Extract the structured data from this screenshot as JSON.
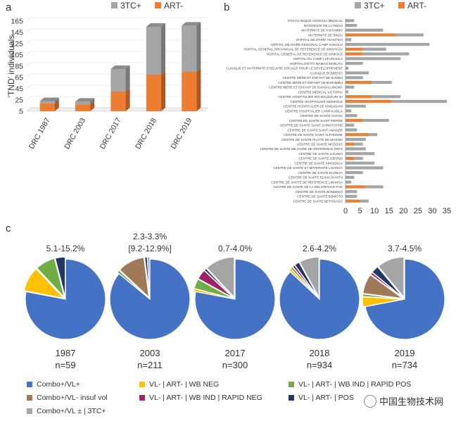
{
  "panels": {
    "a": "a",
    "b": "b",
    "c": "c"
  },
  "chart_data": [
    {
      "id": "panel-a",
      "type": "bar",
      "stacked": true,
      "ylabel": "'TND' individuals",
      "yticks": [
        5,
        25,
        45,
        65,
        85,
        105,
        125,
        145,
        165
      ],
      "ylim": [
        5,
        165
      ],
      "categories": [
        "DRC 1987",
        "DRC 2003",
        "DRC 2017",
        "DRC 2018",
        "DRC 2019"
      ],
      "series": [
        {
          "name": "ART-",
          "color": "#ED7D31",
          "values": [
            14,
            12,
            35,
            65,
            70
          ]
        },
        {
          "name": "3TC+",
          "color": "#A5A5A5",
          "values": [
            4,
            5,
            40,
            85,
            82
          ]
        }
      ],
      "legend": [
        "3TC+",
        "ART-"
      ],
      "legend_position": "top"
    },
    {
      "id": "panel-b",
      "type": "bar",
      "orientation": "horizontal",
      "stacked": true,
      "xlim": [
        0,
        35
      ],
      "xticks": [
        0,
        5,
        10,
        15,
        20,
        25,
        30,
        35
      ],
      "legend": [
        "3TC+",
        "ART-"
      ],
      "legend_position": "top",
      "categories": [
        "POLYCLINIQUE ASSOSSA MEDICAL",
        "MATERNITE DE LUYINDU",
        "MATERNITE DE KINTAMBO",
        "MATERNITE DE BINZA",
        "HOPITAL MILITAIRE TSHATSHI",
        "HOPITAL MILITAIRE REGIONAL CAMP KOKOLO",
        "HOPITAL GENERAL PROVINCIAL DE REFERENCE DE KINSHASA",
        "HOPITAL GENERAL DE REFERENCE DE KINKOLE",
        "HOPITAL DU CAMP LUFUNGULA",
        "HOPITAL D'ETAT MAMAN MOBUTU",
        "CLINIQUE ET MATERNITE D'OEUVRE SOCIALE POUR LE DEVELOPPEMENT",
        "CLINIQUE BONDEKO",
        "CENTRE MERE ET ENFANT DE BUMBU",
        "CENTRE MERE ET ENFANT DE BARUMBU",
        "CENTRE MERE ET ENFANT DE BANDALUNGWA",
        "CENTRE MEDICAL VICTORIA",
        "CENTRE HOSPITALIER ROI BAUDOUIN Ier",
        "CENTRE HOSPITALIER MONKOLE",
        "CENTRE HOSPITALIER DE KINGASANI",
        "CENTRE HOSPITALIER CAMP KABILA",
        "CENTRE DE SANTE VIJANA",
        "CENTRE DE SANTE SAINT PIERRE",
        "CENTRE DE SANTE SAINT CHRISTOPHE",
        "CENTRE DE SANTE SAINT AMANDE",
        "CENTRE DE SANTE SAINT ALPHONSE",
        "CENTRE DE SANTE PILOTE DE MASINA",
        "CENTRE DE SANTE MOSOSO",
        "CENTRE DE SANTE MILITAIRE DE REFERENCE DEFS",
        "CENTRE DE SANTE LISUNGI",
        "CENTRE DE SANTE LIBONDI",
        "CENTRE DE SANTE KINGENGA",
        "CENTRE DE SANTE ET MATERNITE LISANGA",
        "CENTRE DE SANTE ELONGA",
        "CENTRE DE SANTE ELIKIA DIANTU",
        "CENTRE DE SANTE DE REFERENCE LIBANGA",
        "CENTRE DE SANTE DE LA DELIVRANCE POS",
        "CENTRE DE SANTE BONDEKO",
        "CENTRE DE SANTE BOMOTO",
        "CENTRE DE SANTE BETHSAIDA"
      ],
      "series": [
        {
          "name": "ART-",
          "color": "#ED7D31",
          "values": [
            0,
            0,
            0,
            17,
            0,
            0,
            6,
            6,
            0,
            0,
            0,
            0,
            0,
            9,
            0,
            0,
            9,
            16,
            0,
            0,
            0,
            6,
            0,
            0,
            8,
            0,
            3,
            0,
            0,
            3,
            0,
            0,
            0,
            0,
            0,
            7,
            0,
            0,
            5
          ]
        },
        {
          "name": "3TC+",
          "color": "#A5A5A5",
          "values": [
            3,
            4,
            13,
            10,
            2,
            29,
            8,
            16,
            19,
            6,
            1,
            8,
            6,
            7,
            3,
            1,
            10,
            19,
            7,
            2,
            4,
            9,
            3,
            4,
            3,
            7,
            3,
            7,
            10,
            3,
            10,
            13,
            6,
            3,
            2,
            6,
            4,
            4,
            3
          ]
        }
      ]
    },
    {
      "id": "panel-c",
      "type": "pie",
      "categories": [
        "Combo+/VL+",
        "VL- | ART- | WB NEG",
        "VL- | ART- | WB IND | RAPID POS",
        "Combo+/VL- insuf vol",
        "VL- | ART- | WB IND | RAPID NEG",
        "VL- | ART- | POS",
        "Combo+/VL ± | 3TC+"
      ],
      "colors": [
        "#4472C4",
        "#FFC000",
        "#70AD47",
        "#A07A58",
        "#A0206A",
        "#1F3864",
        "#A5A5A5"
      ],
      "pies": [
        {
          "year": "1987",
          "n": "n=59",
          "range": "5.1-15.2%",
          "range2": "",
          "values": [
            78,
            10,
            8,
            0,
            0,
            4,
            0
          ]
        },
        {
          "year": "2003",
          "n": "n=211",
          "range": "2.3-3.3%",
          "range2": "[9.2-12.9%]",
          "values": [
            86,
            0,
            1,
            11,
            0,
            1,
            1
          ]
        },
        {
          "year": "2017",
          "n": "n=300",
          "range": "0.7-4.0%",
          "range2": "",
          "values": [
            78,
            1,
            4,
            0,
            4,
            1,
            12
          ]
        },
        {
          "year": "2018",
          "n": "n=934",
          "range": "2.6-4.2%",
          "range2": "",
          "values": [
            87,
            1,
            1,
            0,
            1,
            2,
            8
          ]
        },
        {
          "year": "2019",
          "n": "n=734",
          "range": "3.7-4.5%",
          "range2": "",
          "values": [
            72,
            4,
            1,
            8,
            1,
            3,
            11
          ]
        }
      ]
    }
  ],
  "watermark": "中国生物技术网"
}
